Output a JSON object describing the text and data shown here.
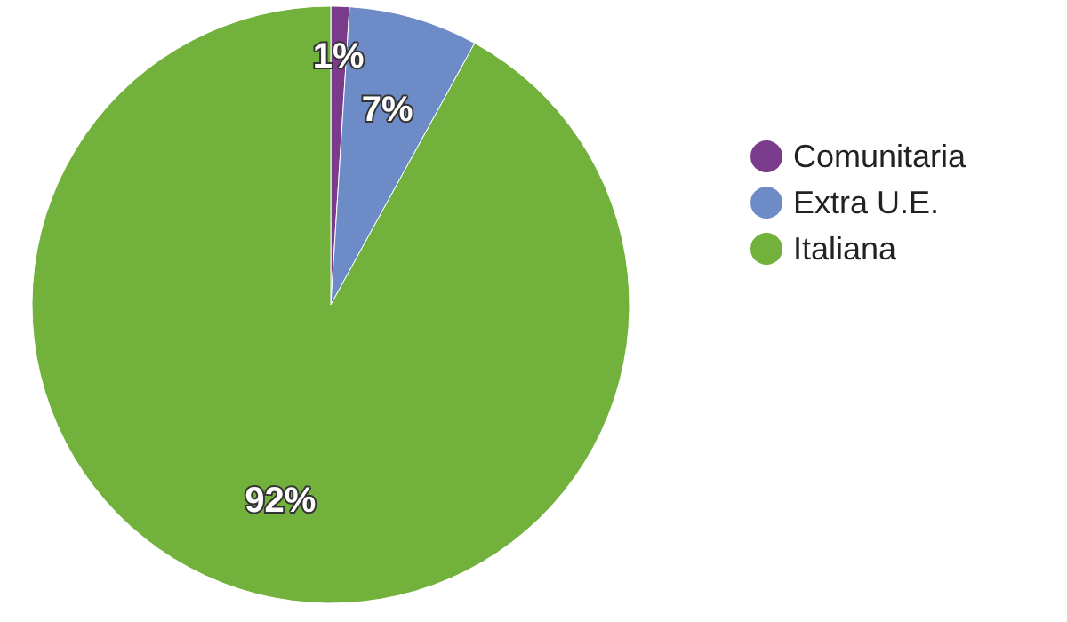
{
  "chart_data": {
    "type": "pie",
    "categories": [
      "Comunitaria",
      "Extra U.E.",
      "Italiana"
    ],
    "values": [
      1,
      7,
      92
    ],
    "colors": [
      "#7b3b8c",
      "#6d8cc7",
      "#72b13c"
    ],
    "value_labels": [
      "1%",
      "7%",
      "92%"
    ],
    "legend": "right",
    "marker": "circle"
  }
}
